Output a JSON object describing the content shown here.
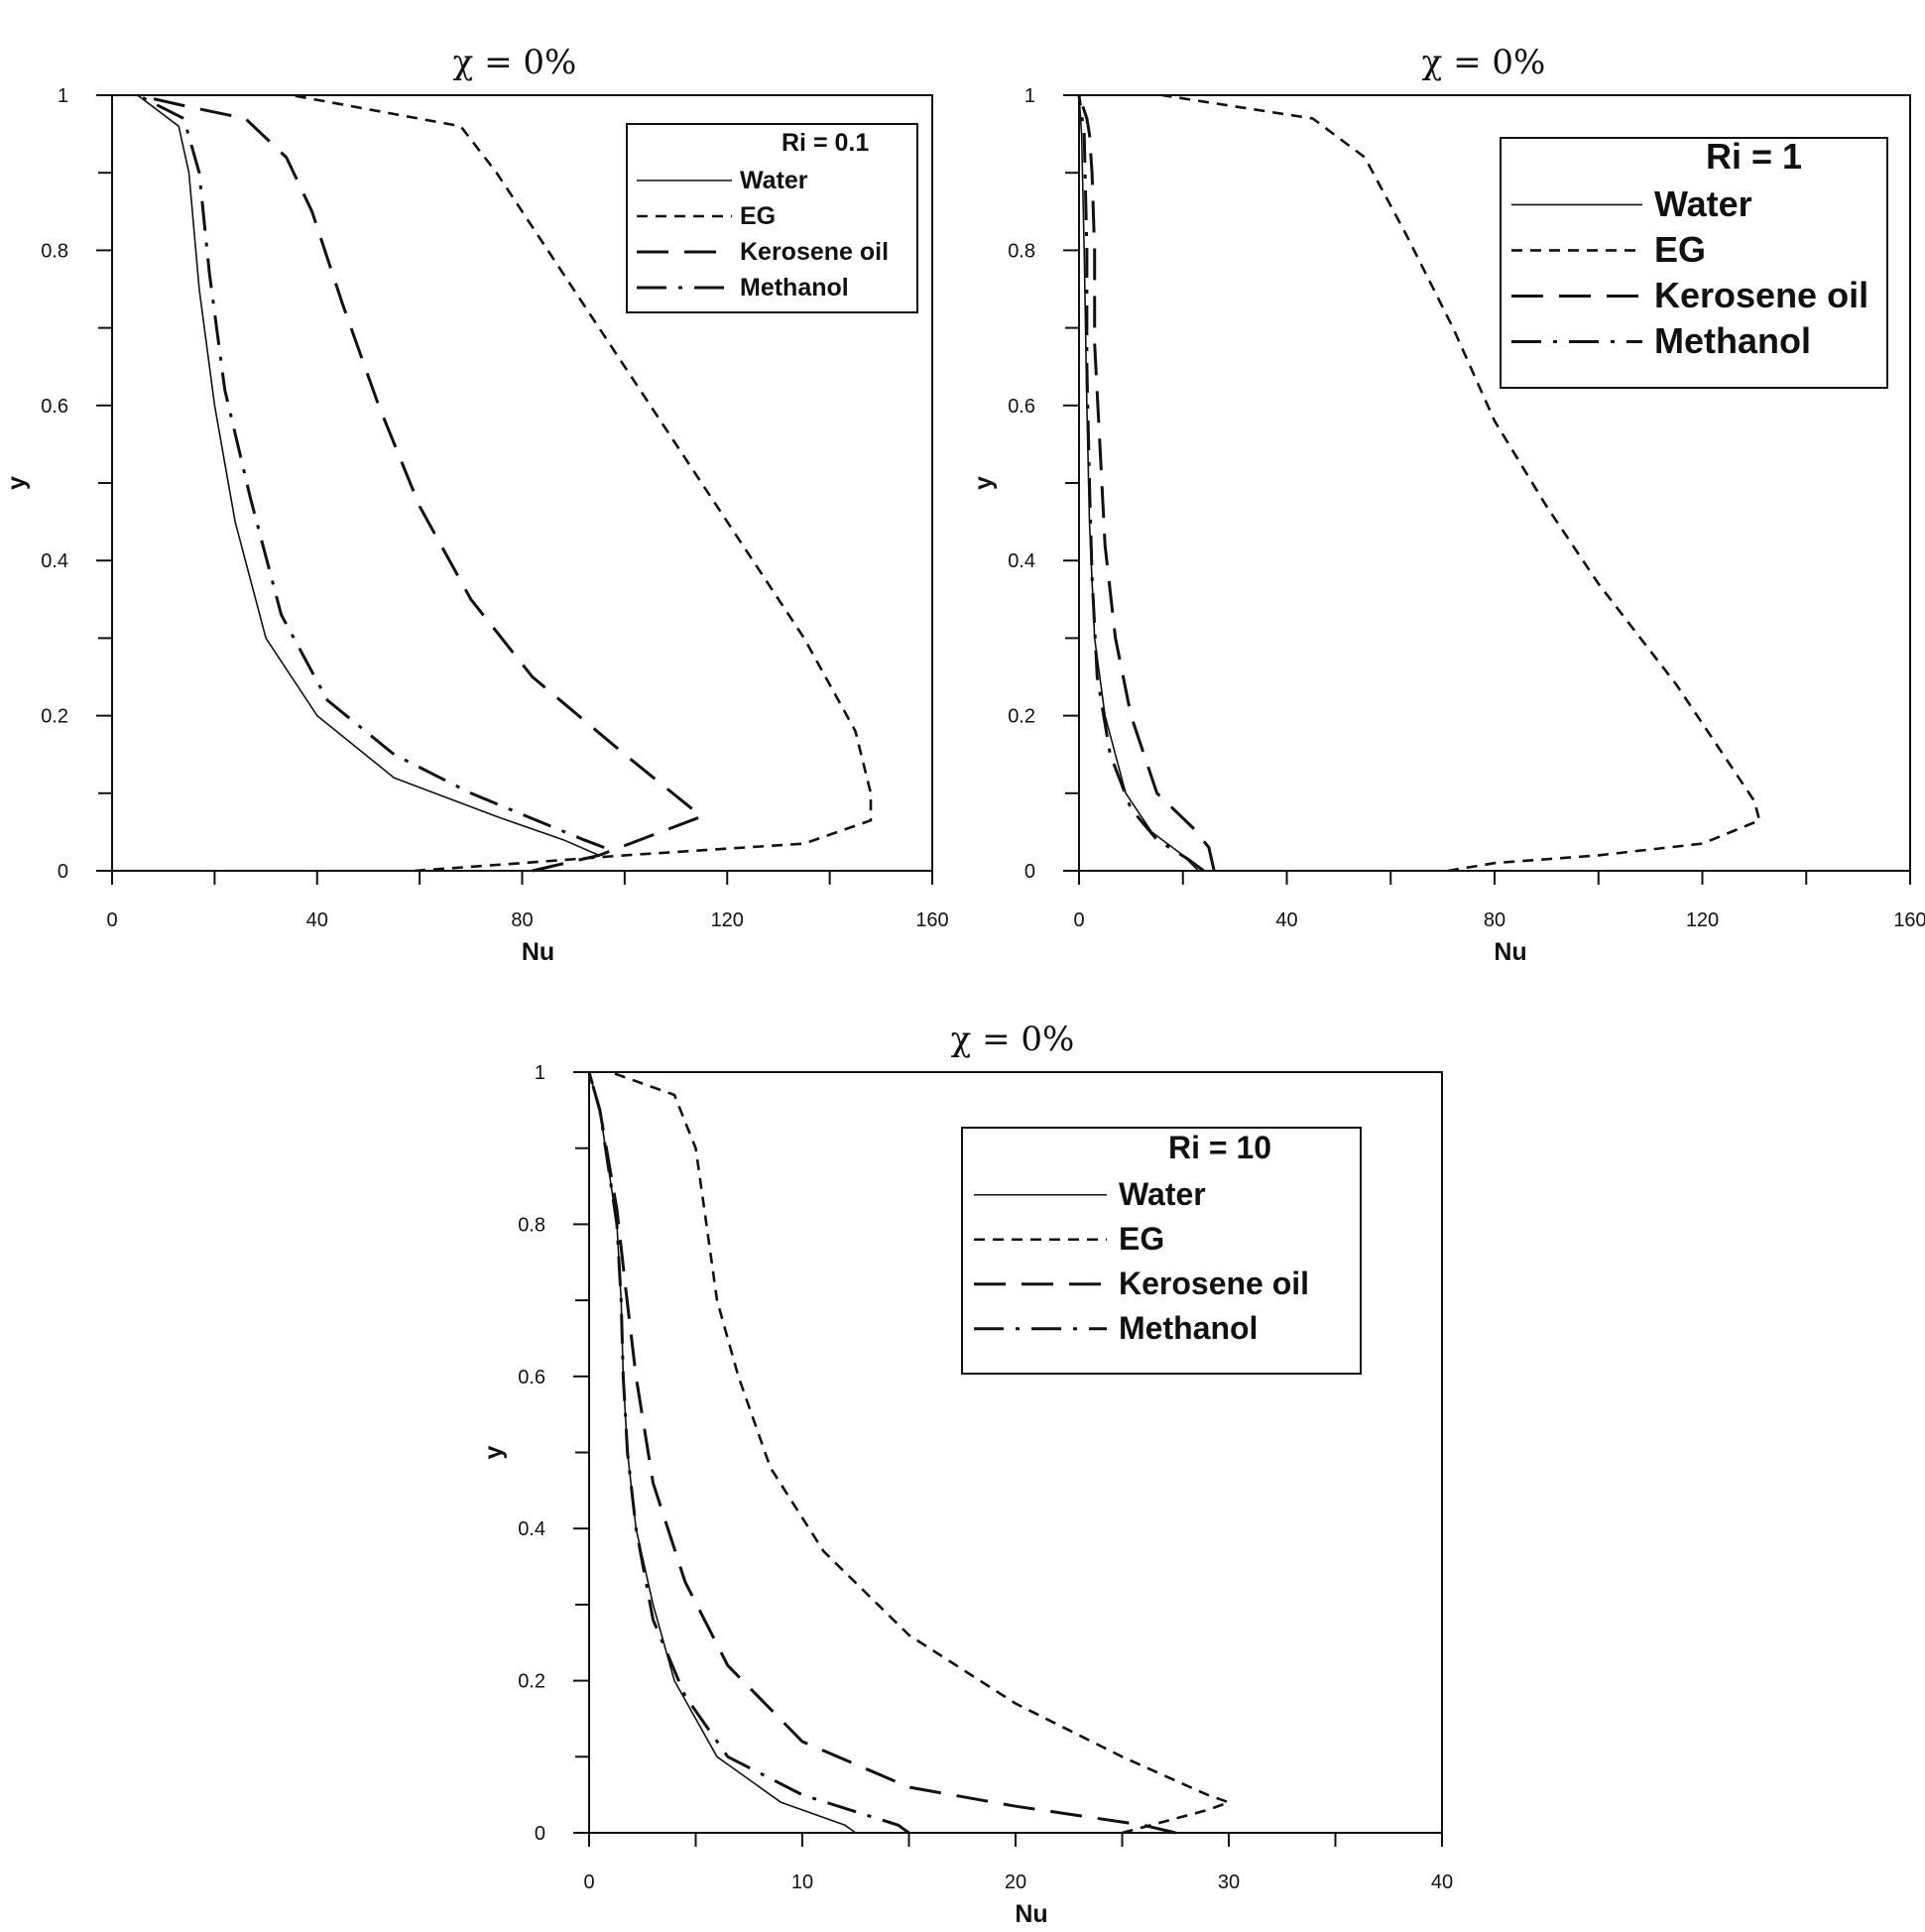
{
  "chart_data": [
    {
      "type": "line",
      "title": "χ = 0%",
      "xlabel": "Nu",
      "ylabel": "y",
      "xlim": [
        0,
        160
      ],
      "ylim": [
        0,
        1
      ],
      "xticks": [
        "0",
        "40",
        "80",
        "120",
        "160"
      ],
      "yticks": [
        "0",
        "0.2",
        "0.4",
        "0.6",
        "0.8",
        "1"
      ],
      "legend": {
        "position": "top-right",
        "heading": "Ri = 0.1"
      },
      "series": [
        {
          "name": "Water",
          "style": "solid",
          "color": "#111111",
          "x": [
            95,
            88,
            75,
            55,
            40,
            30,
            24,
            20,
            17,
            15,
            13,
            5
          ],
          "y": [
            0.02,
            0.04,
            0.07,
            0.12,
            0.2,
            0.3,
            0.45,
            0.6,
            0.75,
            0.9,
            0.96,
            1.0
          ]
        },
        {
          "name": "EG",
          "style": "short-dash",
          "color": "#111111",
          "x": [
            59,
            80,
            100,
            135,
            148,
            148,
            145,
            135,
            120,
            105,
            90,
            75,
            68,
            35
          ],
          "y": [
            0.0,
            0.01,
            0.02,
            0.035,
            0.065,
            0.1,
            0.18,
            0.3,
            0.45,
            0.6,
            0.75,
            0.9,
            0.96,
            1.0
          ]
        },
        {
          "name": "Kerosene oil",
          "style": "long-dash",
          "color": "#111111",
          "x": [
            82,
            95,
            115,
            100,
            82,
            70,
            60,
            52,
            45,
            39,
            34,
            26,
            15,
            5
          ],
          "y": [
            0.0,
            0.02,
            0.07,
            0.15,
            0.25,
            0.35,
            0.47,
            0.6,
            0.73,
            0.85,
            0.92,
            0.97,
            0.985,
            1.0
          ]
        },
        {
          "name": "Methanol",
          "style": "dash-dot",
          "color": "#111111",
          "x": [
            96,
            92,
            70,
            55,
            42,
            33,
            27,
            22,
            19,
            17,
            14,
            5
          ],
          "y": [
            0.03,
            0.04,
            0.1,
            0.15,
            0.22,
            0.33,
            0.48,
            0.62,
            0.77,
            0.9,
            0.97,
            1.0
          ]
        }
      ]
    },
    {
      "type": "line",
      "title": "χ = 0%",
      "xlabel": "Nu",
      "ylabel": "y",
      "xlim": [
        0,
        160
      ],
      "ylim": [
        0,
        1
      ],
      "xticks": [
        "0",
        "40",
        "80",
        "120",
        "160"
      ],
      "yticks": [
        "0",
        "0.2",
        "0.4",
        "0.6",
        "0.8",
        "1"
      ],
      "legend": {
        "position": "top-right",
        "heading": "Ri = 1"
      },
      "series": [
        {
          "name": "Water",
          "style": "solid",
          "color": "#111111",
          "x": [
            23,
            20,
            14,
            9,
            5,
            3,
            2,
            1.5,
            1,
            0.5,
            0
          ],
          "y": [
            0.0,
            0.02,
            0.05,
            0.1,
            0.2,
            0.3,
            0.45,
            0.6,
            0.8,
            0.95,
            1.0
          ]
        },
        {
          "name": "EG",
          "style": "short-dash",
          "color": "#111111",
          "x": [
            71,
            80,
            100,
            120,
            131,
            130,
            125,
            115,
            100,
            90,
            80,
            72,
            63,
            55,
            45,
            16
          ],
          "y": [
            0.0,
            0.01,
            0.02,
            0.035,
            0.065,
            0.09,
            0.14,
            0.24,
            0.37,
            0.47,
            0.58,
            0.7,
            0.82,
            0.92,
            0.97,
            1.0
          ]
        },
        {
          "name": "Kerosene oil",
          "style": "long-dash",
          "color": "#111111",
          "x": [
            26,
            25,
            22,
            15,
            10,
            7,
            5,
            4,
            3,
            3,
            2.5,
            2,
            1.5,
            0
          ],
          "y": [
            0.0,
            0.03,
            0.055,
            0.1,
            0.2,
            0.3,
            0.42,
            0.55,
            0.68,
            0.8,
            0.9,
            0.95,
            0.97,
            1.0
          ]
        },
        {
          "name": "Methanol",
          "style": "dash-dot",
          "color": "#111111",
          "x": [
            24,
            21,
            15,
            10,
            6,
            3.5,
            2.5,
            2,
            1.5,
            1.5,
            1,
            0
          ],
          "y": [
            0.0,
            0.015,
            0.04,
            0.08,
            0.15,
            0.25,
            0.38,
            0.5,
            0.65,
            0.8,
            0.95,
            1.0
          ]
        }
      ]
    },
    {
      "type": "line",
      "title": "χ = 0%",
      "xlabel": "Nu",
      "ylabel": "y",
      "xlim": [
        0,
        40
      ],
      "ylim": [
        0,
        1
      ],
      "xticks": [
        "0",
        "10",
        "20",
        "30",
        "40"
      ],
      "yticks": [
        "0",
        "0.2",
        "0.4",
        "0.6",
        "0.8",
        "1"
      ],
      "legend": {
        "position": "top-right",
        "heading": "Ri = 10"
      },
      "series": [
        {
          "name": "Water",
          "style": "solid",
          "color": "#111111",
          "x": [
            12.5,
            12,
            9,
            6,
            4,
            3,
            2.2,
            1.8,
            1.6,
            1.5,
            1.3,
            0.5,
            0
          ],
          "y": [
            0.0,
            0.01,
            0.04,
            0.1,
            0.2,
            0.3,
            0.4,
            0.5,
            0.6,
            0.7,
            0.8,
            0.95,
            1.0
          ]
        },
        {
          "name": "EG",
          "style": "short-dash",
          "color": "#111111",
          "x": [
            25,
            29,
            30,
            29,
            25,
            20,
            15,
            11,
            8.5,
            7,
            6,
            5.5,
            5,
            4,
            1
          ],
          "y": [
            0.0,
            0.03,
            0.04,
            0.05,
            0.1,
            0.17,
            0.26,
            0.37,
            0.48,
            0.6,
            0.7,
            0.8,
            0.9,
            0.97,
            1.0
          ]
        },
        {
          "name": "Kerosene oil",
          "style": "long-dash",
          "color": "#111111",
          "x": [
            27.5,
            26,
            20,
            15,
            10,
            6.5,
            4.5,
            3,
            2.2,
            1.7,
            1.3,
            0.5,
            0
          ],
          "y": [
            0.0,
            0.01,
            0.035,
            0.06,
            0.12,
            0.22,
            0.33,
            0.46,
            0.6,
            0.72,
            0.82,
            0.95,
            1.0
          ]
        },
        {
          "name": "Methanol",
          "style": "dash-dot",
          "color": "#111111",
          "x": [
            15,
            14.5,
            10,
            6.5,
            4.5,
            3,
            2.2,
            1.8,
            1.6,
            1.5,
            1.3,
            0.5,
            0
          ],
          "y": [
            0.0,
            0.01,
            0.05,
            0.1,
            0.18,
            0.28,
            0.4,
            0.5,
            0.6,
            0.7,
            0.8,
            0.95,
            1.0
          ]
        }
      ]
    }
  ]
}
